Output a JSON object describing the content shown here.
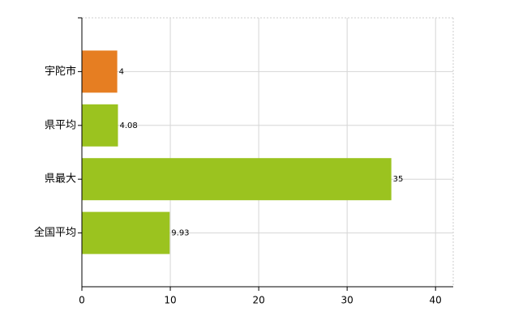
{
  "chart_data": {
    "type": "bar",
    "orientation": "horizontal",
    "categories": [
      "宇陀市",
      "県平均",
      "県最大",
      "全国平均"
    ],
    "values": [
      4,
      4.08,
      35,
      9.93
    ],
    "colors": [
      "#e67e22",
      "#9bc31f",
      "#9bc31f",
      "#9bc31f"
    ],
    "xlim": [
      0,
      42
    ],
    "xticks": [
      0,
      10,
      20,
      30,
      40
    ],
    "grid": true
  }
}
